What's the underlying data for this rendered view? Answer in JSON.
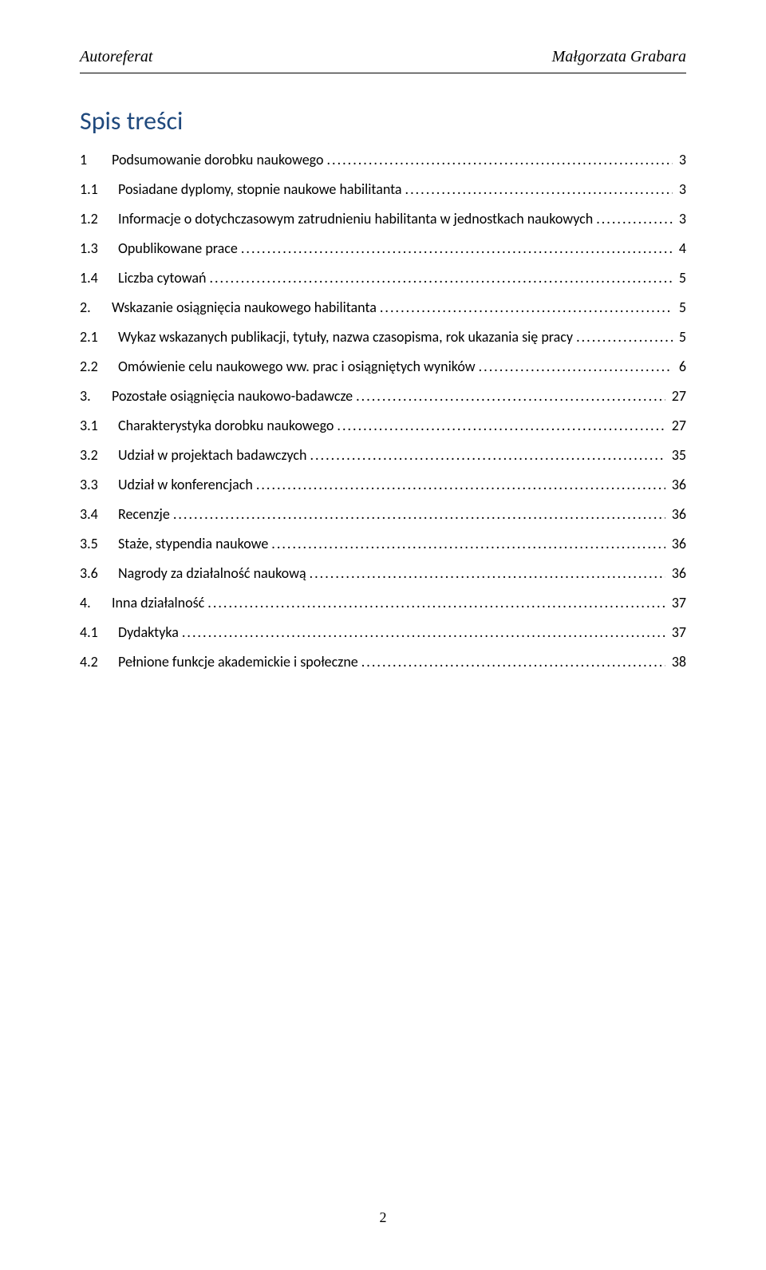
{
  "header": {
    "left": "Autoreferat",
    "right": "Małgorzata Grabara"
  },
  "toc": {
    "title": "Spis treści",
    "title_color": "#1f497d",
    "title_fontsize": 32,
    "entry_fontsize": 18,
    "text_color": "#000000",
    "items": [
      {
        "num": "1",
        "label": "Podsumowanie dorobku naukowego",
        "page": "3",
        "level": 1
      },
      {
        "num": "1.1",
        "label": "Posiadane dyplomy, stopnie naukowe habilitanta",
        "page": "3",
        "level": 2
      },
      {
        "num": "1.2",
        "label": "Informacje o dotychczasowym zatrudnieniu habilitanta w jednostkach naukowych",
        "page": "3",
        "level": 2
      },
      {
        "num": "1.3",
        "label": "Opublikowane prace",
        "page": "4",
        "level": 2
      },
      {
        "num": "1.4",
        "label": "Liczba cytowań",
        "page": "5",
        "level": 2
      },
      {
        "num": "2.",
        "label": "Wskazanie osiągnięcia naukowego habilitanta",
        "page": "5",
        "level": 1
      },
      {
        "num": "2.1",
        "label": "Wykaz wskazanych publikacji, tytuły, nazwa czasopisma, rok ukazania się pracy",
        "page": "5",
        "level": 2
      },
      {
        "num": "2.2",
        "label": "Omówienie celu naukowego ww. prac i osiągniętych wyników",
        "page": "6",
        "level": 2
      },
      {
        "num": "3.",
        "label": "Pozostałe osiągnięcia naukowo-badawcze",
        "page": "27",
        "level": 1
      },
      {
        "num": "3.1",
        "label": "Charakterystyka dorobku naukowego",
        "page": "27",
        "level": 2
      },
      {
        "num": "3.2",
        "label": "Udział w projektach badawczych",
        "page": "35",
        "level": 2
      },
      {
        "num": "3.3",
        "label": "Udział w konferencjach",
        "page": "36",
        "level": 2
      },
      {
        "num": "3.4",
        "label": "Recenzje",
        "page": "36",
        "level": 2
      },
      {
        "num": "3.5",
        "label": "Staże, stypendia naukowe",
        "page": "36",
        "level": 2
      },
      {
        "num": "3.6",
        "label": "Nagrody za działalność naukową",
        "page": "36",
        "level": 2
      },
      {
        "num": "4.",
        "label": "Inna działalność",
        "page": "37",
        "level": 1
      },
      {
        "num": "4.1",
        "label": "Dydaktyka",
        "page": "37",
        "level": 2
      },
      {
        "num": "4.2",
        "label": "Pełnione funkcje akademickie i społeczne",
        "page": "38",
        "level": 2
      }
    ]
  },
  "footer": {
    "page_number": "2"
  }
}
